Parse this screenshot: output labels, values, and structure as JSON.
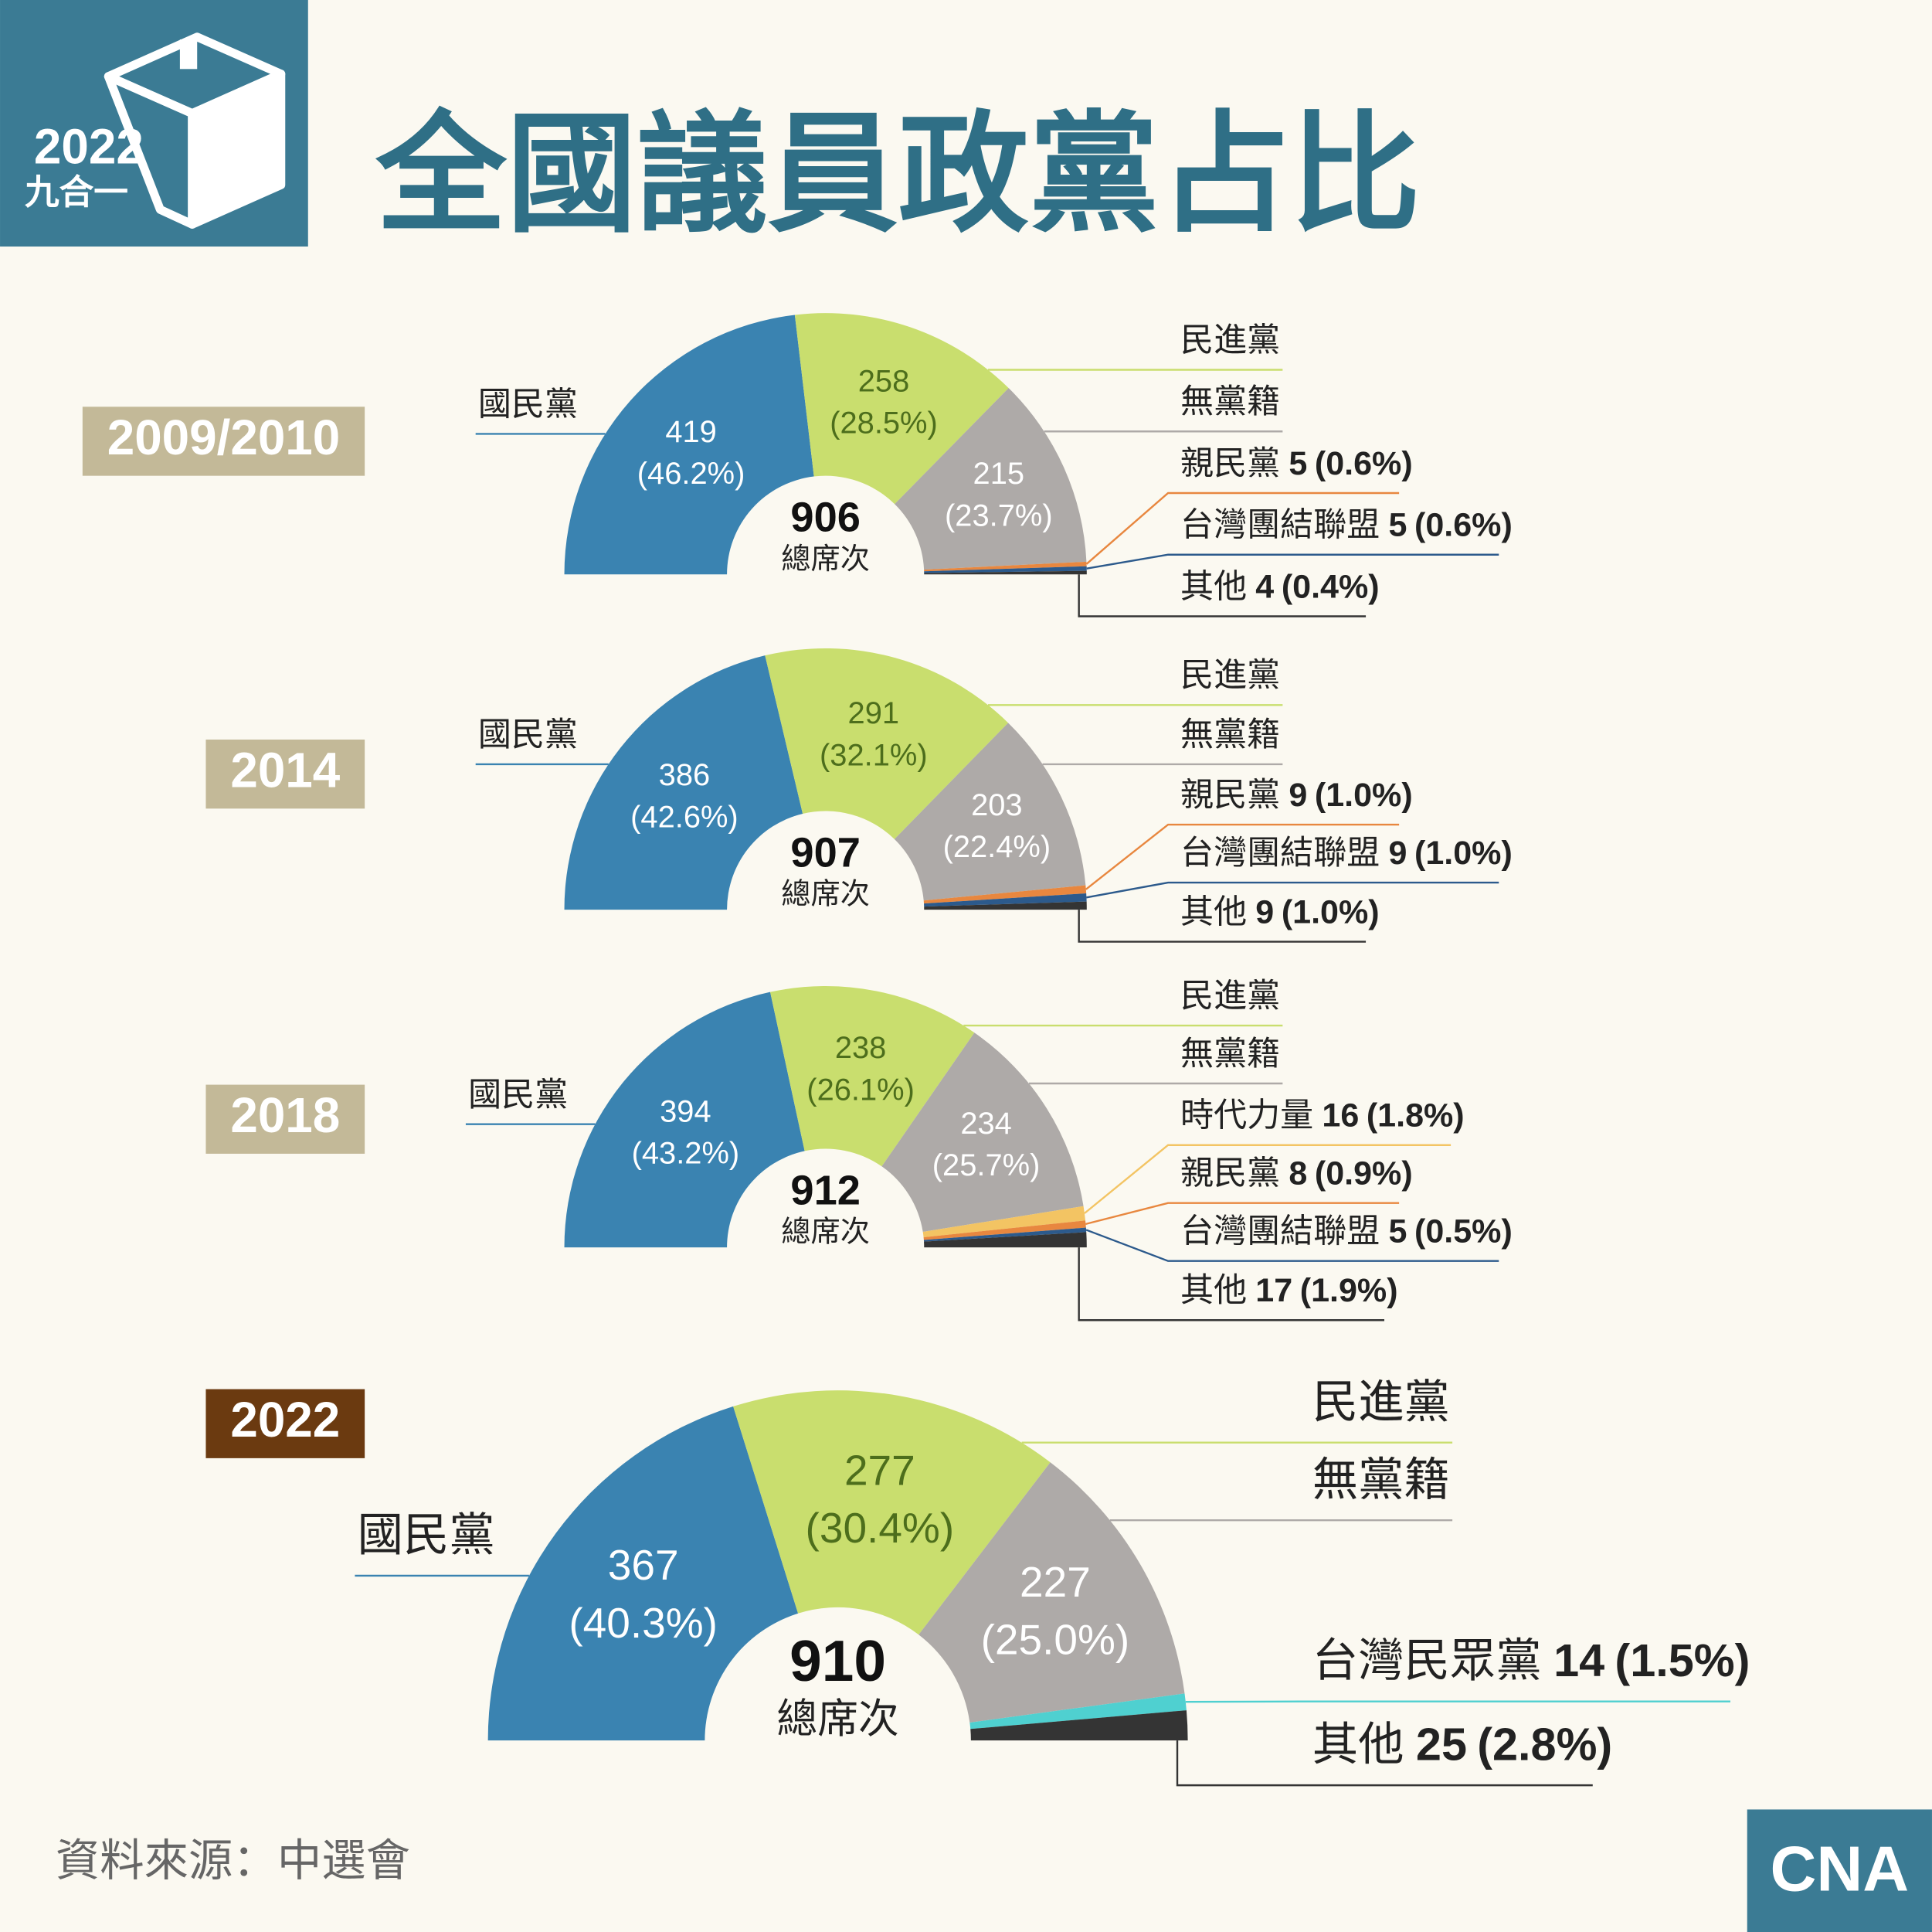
{
  "header": {
    "title": "全國議員政黨占比",
    "logo_year": "2022",
    "logo_label": "九合一"
  },
  "chart_data": [
    {
      "type": "pie",
      "title": "2009/2010",
      "year_color": "#c3b998",
      "total": 906,
      "total_label": "總席次",
      "categories": [
        "國民黨",
        "民進黨",
        "無黨籍",
        "親民黨",
        "台灣團結聯盟",
        "其他"
      ],
      "values": [
        419,
        258,
        215,
        5,
        5,
        4
      ],
      "shares": [
        46.2,
        28.5,
        23.7,
        0.6,
        0.6,
        0.4
      ],
      "share_labels": [
        "(46.2%)",
        "(28.5%)",
        "(23.7%)",
        "(0.6%)",
        "(0.6%)",
        "(0.4%)"
      ],
      "colors": [
        "#3a83b1",
        "#c9de6e",
        "#aeaaa8",
        "#e8873f",
        "#2c5a8c",
        "#343434"
      ]
    },
    {
      "type": "pie",
      "title": "2014",
      "year_color": "#c3b998",
      "total": 907,
      "total_label": "總席次",
      "categories": [
        "國民黨",
        "民進黨",
        "無黨籍",
        "親民黨",
        "台灣團結聯盟",
        "其他"
      ],
      "values": [
        386,
        291,
        203,
        9,
        9,
        9
      ],
      "shares": [
        42.6,
        32.1,
        22.4,
        1.0,
        1.0,
        1.0
      ],
      "share_labels": [
        "(42.6%)",
        "(32.1%)",
        "(22.4%)",
        "(1.0%)",
        "(1.0%)",
        "(1.0%)"
      ],
      "colors": [
        "#3a83b1",
        "#c9de6e",
        "#aeaaa8",
        "#e8873f",
        "#2c5a8c",
        "#343434"
      ]
    },
    {
      "type": "pie",
      "title": "2018",
      "year_color": "#c3b998",
      "total": 912,
      "total_label": "總席次",
      "categories": [
        "國民黨",
        "民進黨",
        "無黨籍",
        "時代力量",
        "親民黨",
        "台灣團結聯盟",
        "其他"
      ],
      "values": [
        394,
        238,
        234,
        16,
        8,
        5,
        17
      ],
      "shares": [
        43.2,
        26.1,
        25.7,
        1.8,
        0.9,
        0.5,
        1.9
      ],
      "share_labels": [
        "(43.2%)",
        "(26.1%)",
        "(25.7%)",
        "(1.8%)",
        "(0.9%)",
        "(0.5%)",
        "(1.9%)"
      ],
      "colors": [
        "#3a83b1",
        "#c9de6e",
        "#aeaaa8",
        "#f3c463",
        "#e8873f",
        "#2c5a8c",
        "#343434"
      ]
    },
    {
      "type": "pie",
      "title": "2022",
      "year_color": "#6b3a10",
      "total": 910,
      "total_label": "總席次",
      "categories": [
        "國民黨",
        "民進黨",
        "無黨籍",
        "台灣民眾黨",
        "其他"
      ],
      "values": [
        367,
        277,
        227,
        14,
        25
      ],
      "shares": [
        40.3,
        30.4,
        25.0,
        1.5,
        2.8
      ],
      "share_labels": [
        "(40.3%)",
        "(30.4%)",
        "(25.0%)",
        "(1.5%)",
        "(2.8%)"
      ],
      "colors": [
        "#3a83b1",
        "#c9de6e",
        "#aeaaa8",
        "#4fd0d0",
        "#343434"
      ]
    }
  ],
  "source": "資料來源：中選會",
  "brand": "CNA"
}
